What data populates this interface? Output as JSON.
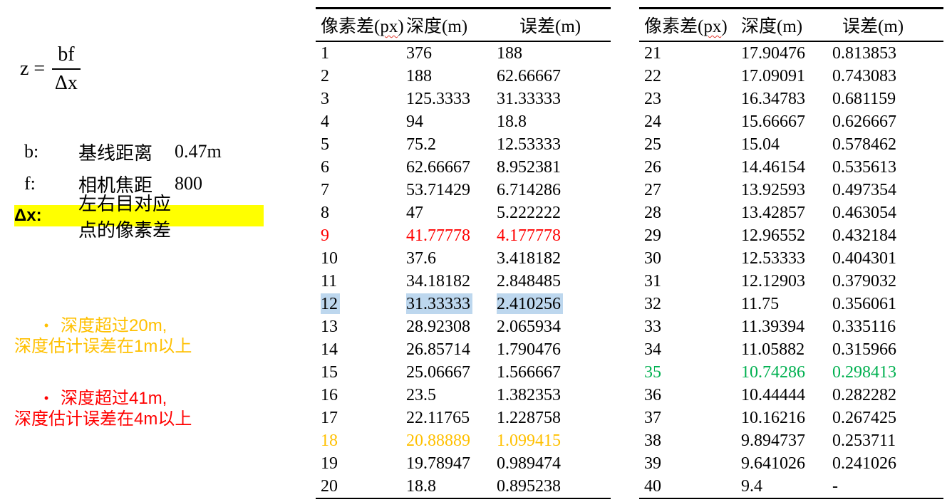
{
  "colors": {
    "red": "#FF0000",
    "orange": "#FFC000",
    "green": "#00B050",
    "blue_highlight": "#BDD7EE",
    "yellow_highlight": "#FFFF00"
  },
  "formula": {
    "lhs": "z =",
    "numerator": "bf",
    "denominator": "Δx"
  },
  "parameters": [
    {
      "symbol": "b:",
      "name": "基线距离",
      "value": "0.47m",
      "highlight": false
    },
    {
      "symbol": "f:",
      "name": "相机焦距",
      "value": "800",
      "highlight": false
    },
    {
      "symbol": "Δx:",
      "name": "左右目对应点的像素差",
      "value": "",
      "highlight": true
    }
  ],
  "notes": [
    {
      "bullet": "•",
      "line1": "深度超过20m,",
      "line2": "深度估计误差在1m以上",
      "color_key": "orange"
    },
    {
      "bullet": "•",
      "line1": "深度超过41m,",
      "line2": "深度估计误差在4m以上",
      "color_key": "red"
    }
  ],
  "table_header": {
    "col1_prefix": "像素差(",
    "col1_px": "px",
    "col1_suffix": ")",
    "col2": "深度(m)",
    "col3": "误差(m)"
  },
  "tables": [
    {
      "rows": [
        [
          "1",
          "376",
          "188",
          "normal"
        ],
        [
          "2",
          "188",
          "62.66667",
          "normal"
        ],
        [
          "3",
          "125.3333",
          "31.33333",
          "normal"
        ],
        [
          "4",
          "94",
          "18.8",
          "normal"
        ],
        [
          "5",
          "75.2",
          "12.53333",
          "normal"
        ],
        [
          "6",
          "62.66667",
          "8.952381",
          "normal"
        ],
        [
          "7",
          "53.71429",
          "6.714286",
          "normal"
        ],
        [
          "8",
          "47",
          "5.222222",
          "normal"
        ],
        [
          "9",
          "41.77778",
          "4.177778",
          "red"
        ],
        [
          "10",
          "37.6",
          "3.418182",
          "normal"
        ],
        [
          "11",
          "34.18182",
          "2.848485",
          "normal"
        ],
        [
          "12",
          "31.33333",
          "2.410256",
          "blue"
        ],
        [
          "13",
          "28.92308",
          "2.065934",
          "normal"
        ],
        [
          "14",
          "26.85714",
          "1.790476",
          "normal"
        ],
        [
          "15",
          "25.06667",
          "1.566667",
          "normal"
        ],
        [
          "16",
          "23.5",
          "1.382353",
          "normal"
        ],
        [
          "17",
          "22.11765",
          "1.228758",
          "normal"
        ],
        [
          "18",
          "20.88889",
          "1.099415",
          "orange"
        ],
        [
          "19",
          "19.78947",
          "0.989474",
          "normal"
        ],
        [
          "20",
          "18.8",
          "0.895238",
          "normal"
        ]
      ]
    },
    {
      "rows": [
        [
          "21",
          "17.90476",
          "0.813853",
          "normal"
        ],
        [
          "22",
          "17.09091",
          "0.743083",
          "normal"
        ],
        [
          "23",
          "16.34783",
          "0.681159",
          "normal"
        ],
        [
          "24",
          "15.66667",
          "0.626667",
          "normal"
        ],
        [
          "25",
          "15.04",
          "0.578462",
          "normal"
        ],
        [
          "26",
          "14.46154",
          "0.535613",
          "normal"
        ],
        [
          "27",
          "13.92593",
          "0.497354",
          "normal"
        ],
        [
          "28",
          "13.42857",
          "0.463054",
          "normal"
        ],
        [
          "29",
          "12.96552",
          "0.432184",
          "normal"
        ],
        [
          "30",
          "12.53333",
          "0.404301",
          "normal"
        ],
        [
          "31",
          "12.12903",
          "0.379032",
          "normal"
        ],
        [
          "32",
          "11.75",
          "0.356061",
          "normal"
        ],
        [
          "33",
          "11.39394",
          "0.335116",
          "normal"
        ],
        [
          "34",
          "11.05882",
          "0.315966",
          "normal"
        ],
        [
          "35",
          "10.74286",
          "0.298413",
          "green"
        ],
        [
          "36",
          "10.44444",
          "0.282282",
          "normal"
        ],
        [
          "37",
          "10.16216",
          "0.267425",
          "normal"
        ],
        [
          "38",
          "9.894737",
          "0.253711",
          "normal"
        ],
        [
          "39",
          "9.641026",
          "0.241026",
          "normal"
        ],
        [
          "40",
          "9.4",
          "-",
          "normal"
        ]
      ]
    }
  ]
}
